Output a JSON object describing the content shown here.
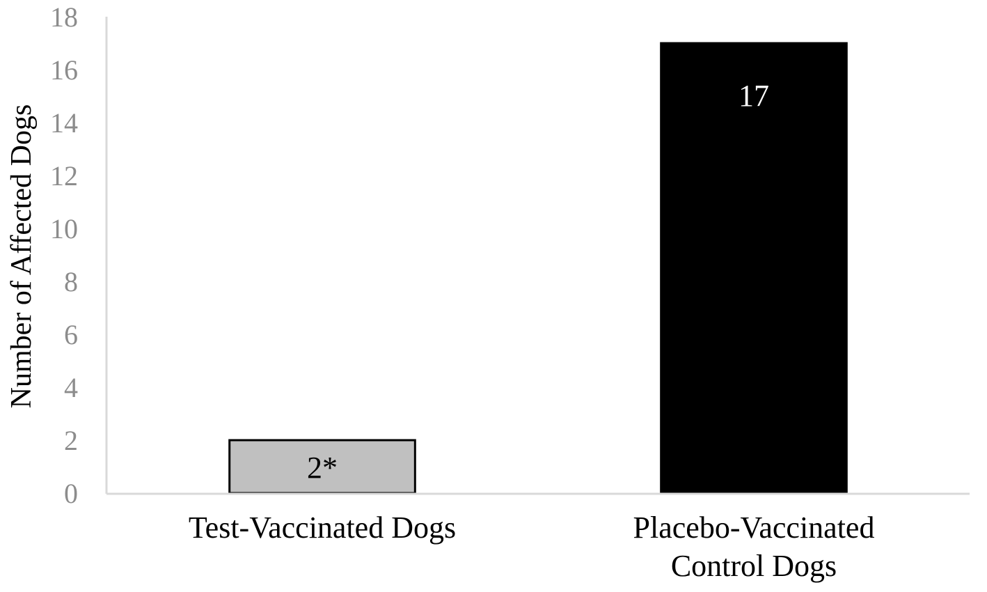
{
  "chart_data": {
    "type": "bar",
    "title": "",
    "xlabel": "",
    "ylabel": "Number of Affected Dogs",
    "ylim": [
      0,
      18
    ],
    "yticks": [
      0,
      2,
      4,
      6,
      8,
      10,
      12,
      14,
      16,
      18
    ],
    "grid": false,
    "legend": "none",
    "categories": [
      [
        "Test-Vaccinated Dogs"
      ],
      [
        "Placebo-Vaccinated",
        "Control Dogs"
      ]
    ],
    "values": [
      2,
      17
    ],
    "data_labels": [
      "2*",
      "17"
    ],
    "bar_fills": [
      "#c0c0c0",
      "#000000"
    ],
    "bar_strokes": [
      "#000000",
      "#000000"
    ],
    "label_colors": [
      "#000000",
      "#ffffff"
    ],
    "axis_color": "#d9d9d9",
    "tick_color": "#8c8c8c"
  }
}
